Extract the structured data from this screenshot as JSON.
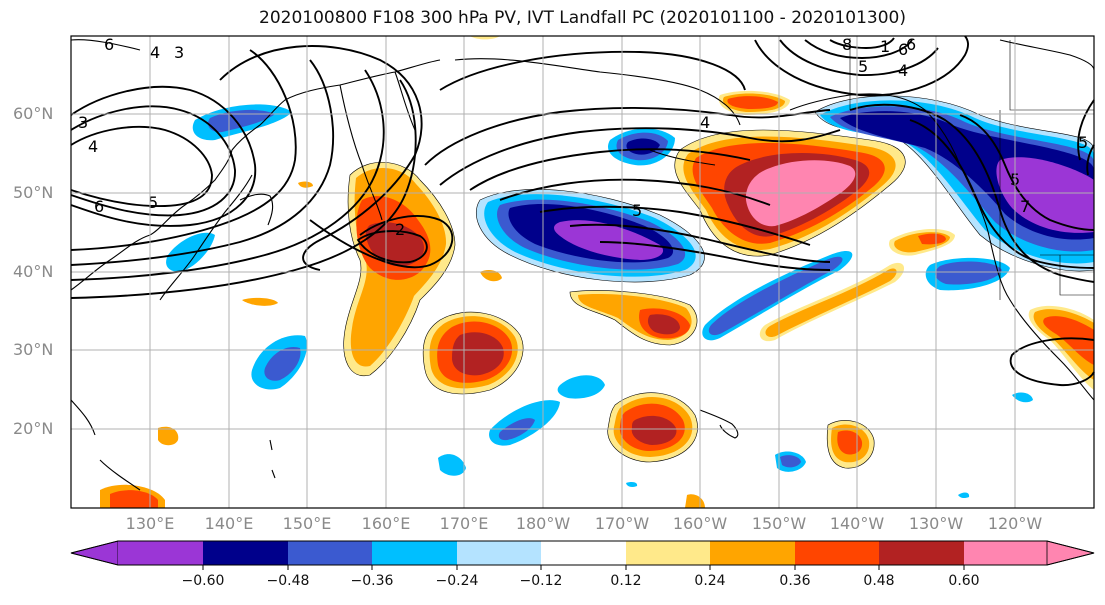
{
  "title": "2020100800 F108 300 hPa PV, IVT Landfall PC (2020101100 - 2020101300)",
  "latitude_labels": [
    "60°N",
    "50°N",
    "40°N",
    "30°N",
    "20°N"
  ],
  "longitude_labels": [
    "130°E",
    "140°E",
    "150°E",
    "160°E",
    "170°E",
    "180°W",
    "170°W",
    "160°W",
    "150°W",
    "140°W",
    "130°W",
    "120°W"
  ],
  "colorbar": {
    "ticks": [
      "−0.60",
      "−0.48",
      "−0.36",
      "−0.24",
      "−0.12",
      "0.12",
      "0.24",
      "0.36",
      "0.48",
      "0.60"
    ],
    "colors": [
      "#9b36d6",
      "#00008b",
      "#3b5ad0",
      "#00bfff",
      "#b4e3ff",
      "#ffffff",
      "#ffe98a",
      "#ffa500",
      "#ff4500",
      "#b22222",
      "#ff85b0"
    ]
  },
  "contour_labels": [
    "6",
    "4",
    "3",
    "3",
    "4",
    "6",
    "5",
    "2",
    "5",
    "4",
    "8",
    "6",
    "5",
    "4",
    "1",
    "6",
    "5",
    "7",
    "5"
  ],
  "colors": {
    "grid": "#b0b0b0",
    "coast": "#000000",
    "contour": "#000000"
  }
}
